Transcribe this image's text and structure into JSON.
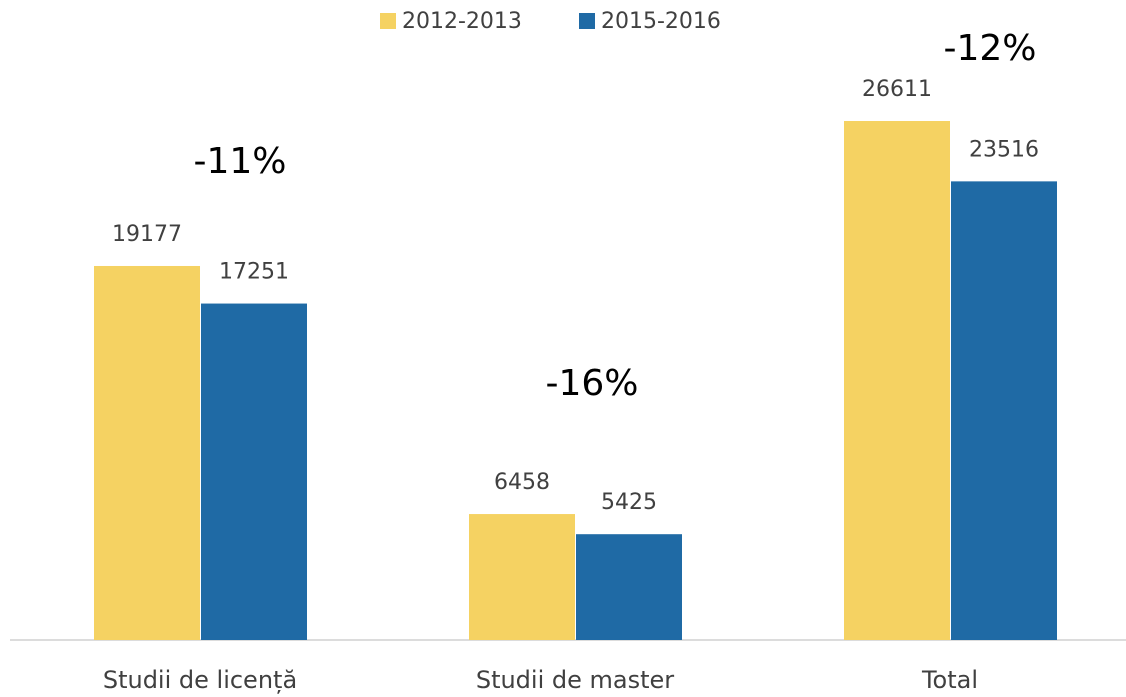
{
  "chart_data": {
    "type": "bar",
    "categories": [
      "Studii de licență",
      "Studii de master",
      "Total"
    ],
    "series": [
      {
        "name": "2012-2013",
        "color": "#f5d262",
        "values": [
          19177,
          6458,
          26611
        ]
      },
      {
        "name": "2015-2016",
        "color": "#1f6aa5",
        "values": [
          17251,
          5425,
          23516
        ]
      }
    ],
    "annotations": [
      "-11%",
      "-16%",
      "-12%"
    ],
    "legend": "top"
  }
}
